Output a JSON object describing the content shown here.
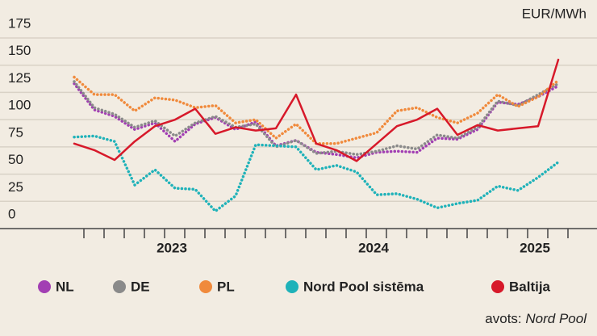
{
  "chart_data": {
    "type": "line",
    "unit_label": "EUR/MWh",
    "categories": [
      null,
      null,
      null,
      null,
      null,
      "2023",
      null,
      null,
      null,
      null,
      null,
      null,
      null,
      null,
      null,
      "2024",
      null,
      null,
      null,
      null,
      null,
      null,
      null,
      "2025",
      null
    ],
    "series": [
      {
        "name": "NL",
        "color": "#a23fb3",
        "line_style": "dotted",
        "values": [
          133,
          109,
          103,
          91,
          97,
          80,
          96,
          102,
          91,
          98,
          76,
          81,
          70,
          68,
          65,
          70,
          71,
          70,
          83,
          82,
          91,
          116,
          114,
          121,
          131
        ]
      },
      {
        "name": "DE",
        "color": "#8a8a8a",
        "line_style": "dotted",
        "values": [
          135,
          111,
          105,
          93,
          99,
          85,
          97,
          103,
          93,
          96,
          75,
          81,
          69,
          71,
          68,
          71,
          76,
          73,
          86,
          83,
          93,
          117,
          113,
          123,
          133
        ]
      },
      {
        "name": "PL",
        "color": "#f08a3c",
        "line_style": "dotted",
        "values": [
          139,
          123,
          123,
          108,
          120,
          118,
          111,
          113,
          97,
          100,
          83,
          96,
          78,
          78,
          83,
          88,
          108,
          111,
          102,
          97,
          106,
          123,
          112,
          121,
          136
        ]
      },
      {
        "name": "Nord Pool sistēma",
        "color": "#1fb2b9",
        "line_style": "dotted",
        "values": [
          84,
          85,
          80,
          40,
          54,
          37,
          36,
          16,
          30,
          77,
          76,
          75,
          54,
          58,
          52,
          31,
          32,
          27,
          19,
          23,
          26,
          39,
          35,
          47,
          61
        ]
      },
      {
        "name": "Baltija",
        "color": "#d7192a",
        "line_style": "solid",
        "values": [
          78,
          72,
          63,
          80,
          94,
          100,
          110,
          87,
          93,
          90,
          92,
          123,
          78,
          72,
          62,
          78,
          94,
          100,
          110,
          86,
          95,
          90,
          92,
          94,
          155
        ]
      }
    ],
    "ylim": [
      0,
      195
    ],
    "yticks": [
      0,
      25,
      50,
      75,
      100,
      125,
      150,
      175
    ],
    "grid": true,
    "source_prefix": "avots:",
    "source": "Nord Pool"
  }
}
